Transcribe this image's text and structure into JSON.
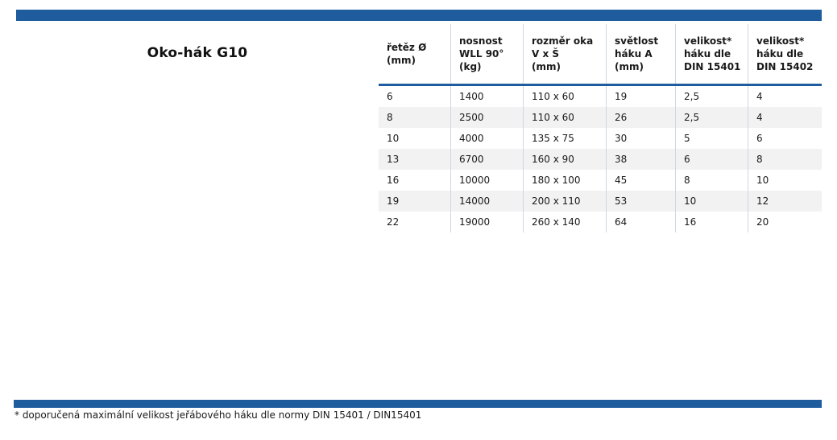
{
  "page": {
    "title": "Oko-hák G10",
    "footnote": "* doporučená maximální velikost jeřábového háku dle normy DIN 15401 / DIN15401"
  },
  "colors": {
    "accent_blue": "#1e5c9e",
    "row_stripe": "#f2f2f2",
    "column_divider": "#cdd7e1"
  },
  "table": {
    "columns": [
      {
        "id": "chain-diameter",
        "label_lines": [
          "řetěz Ø",
          "(mm)"
        ]
      },
      {
        "id": "wll-90",
        "label_lines": [
          "nosnost",
          "WLL 90°",
          "(kg)"
        ]
      },
      {
        "id": "eye-size",
        "label_lines": [
          "rozměr oka",
          "V x Š",
          "(mm)"
        ]
      },
      {
        "id": "hook-clearance",
        "label_lines": [
          "světlost",
          "háku A",
          "(mm)"
        ]
      },
      {
        "id": "hook-size-din-15401",
        "label_lines": [
          "velikost*",
          "háku dle",
          "DIN 15401"
        ]
      },
      {
        "id": "hook-size-din-15402",
        "label_lines": [
          "velikost*",
          "háku dle",
          "DIN 15402"
        ]
      }
    ],
    "rows": [
      [
        "6",
        "1400",
        "110 x 60",
        "19",
        "2,5",
        "4"
      ],
      [
        "8",
        "2500",
        "110 x 60",
        "26",
        "2,5",
        "4"
      ],
      [
        "10",
        "4000",
        "135 x 75",
        "30",
        "5",
        "6"
      ],
      [
        "13",
        "6700",
        "160 x 90",
        "38",
        "6",
        "8"
      ],
      [
        "16",
        "10000",
        "180 x 100",
        "45",
        "8",
        "10"
      ],
      [
        "19",
        "14000",
        "200 x 110",
        "53",
        "10",
        "12"
      ],
      [
        "22",
        "19000",
        "260 x 140",
        "64",
        "16",
        "20"
      ]
    ]
  }
}
